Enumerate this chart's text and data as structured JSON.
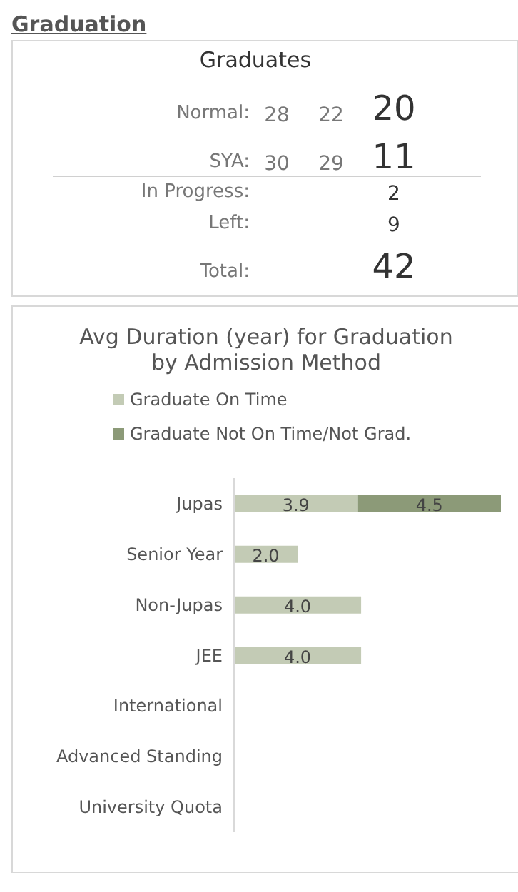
{
  "chart_data": [
    {
      "type": "other",
      "title": "Graduation",
      "subtitle": "Graduates",
      "annotations": [
        "Normal:",
        "28",
        "22",
        "20",
        "SYA:",
        "30",
        "29",
        "11",
        "In Progress:",
        "2",
        "Left:",
        "9",
        "Total:",
        "42"
      ]
    },
    {
      "type": "bar",
      "orientation": "horizontal",
      "stacked": true,
      "title": "Avg Duration (year) for Graduation by Admission Method",
      "categories": [
        "Jupas",
        "Senior Year",
        "Non-Jupas",
        "JEE",
        "International",
        "Advanced Standing",
        "University Quota"
      ],
      "tick_labels": "y",
      "legend": "top",
      "grid": false,
      "series": [
        {
          "name": "Graduate On Time",
          "color": "#c3cbb5",
          "values": [
            3.9,
            2.0,
            4.0,
            4.0,
            null,
            null,
            null
          ],
          "value_labels": [
            "3.9",
            "2.0",
            "4.0",
            "4.0",
            null,
            null,
            null
          ]
        },
        {
          "name": "Graduate Not On Time/Not Grad.",
          "color": "#8c9a78",
          "values": [
            4.5,
            null,
            null,
            null,
            null,
            null,
            null
          ],
          "value_labels": [
            "4.5",
            null,
            null,
            null,
            null,
            null,
            null
          ]
        }
      ]
    }
  ]
}
